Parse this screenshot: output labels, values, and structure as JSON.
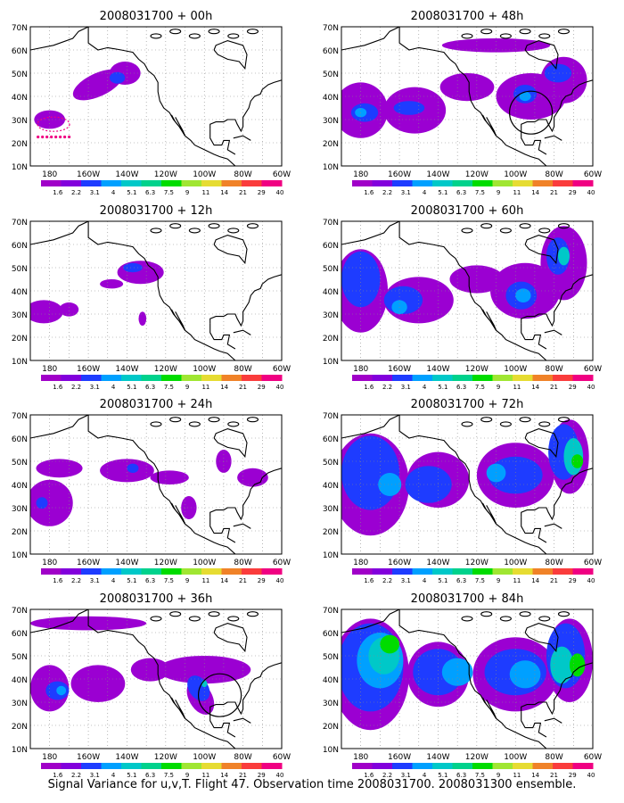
{
  "caption": "Signal Variance for u,v,T. Flight 47. Observation time 2008031700. 2008031300 ensemble.",
  "colorbar": {
    "labels": [
      "1.6",
      "2.2",
      "3.1",
      "4",
      "5.1",
      "6.3",
      "7.5",
      "9",
      "11",
      "14",
      "21",
      "29",
      "40"
    ],
    "colors": [
      "#a000c8",
      "#8200dc",
      "#1e3cff",
      "#00a0ff",
      "#00c8c8",
      "#00d28c",
      "#00dc00",
      "#a0e632",
      "#e6dc32",
      "#f08228",
      "#fa3c3c",
      "#f00082"
    ]
  },
  "axes": {
    "lat_ticks": [
      "70N",
      "60N",
      "50N",
      "40N",
      "30N",
      "20N",
      "10N"
    ],
    "lon_ticks": [
      "180",
      "160W",
      "140W",
      "120W",
      "100W",
      "80W",
      "60W"
    ]
  },
  "map_colors": {
    "purple": "#9b00d2",
    "blue": "#1e3cff",
    "lightblue": "#00a0ff",
    "cyan": "#00c8c8",
    "green": "#00dc00",
    "coast": "#000000"
  },
  "panels": [
    {
      "id": "00h",
      "title": "2008031700 + 00h",
      "circle": false,
      "highlight": "magenta-dots"
    },
    {
      "id": "48h",
      "title": "2008031700 + 48h",
      "circle": true
    },
    {
      "id": "12h",
      "title": "2008031700 + 12h",
      "circle": false
    },
    {
      "id": "60h",
      "title": "2008031700 + 60h",
      "circle": false
    },
    {
      "id": "24h",
      "title": "2008031700 + 24h",
      "circle": false
    },
    {
      "id": "72h",
      "title": "2008031700 + 72h",
      "circle": false
    },
    {
      "id": "36h",
      "title": "2008031700 + 36h",
      "circle": true
    },
    {
      "id": "84h",
      "title": "2008031700 + 84h",
      "circle": false
    }
  ]
}
